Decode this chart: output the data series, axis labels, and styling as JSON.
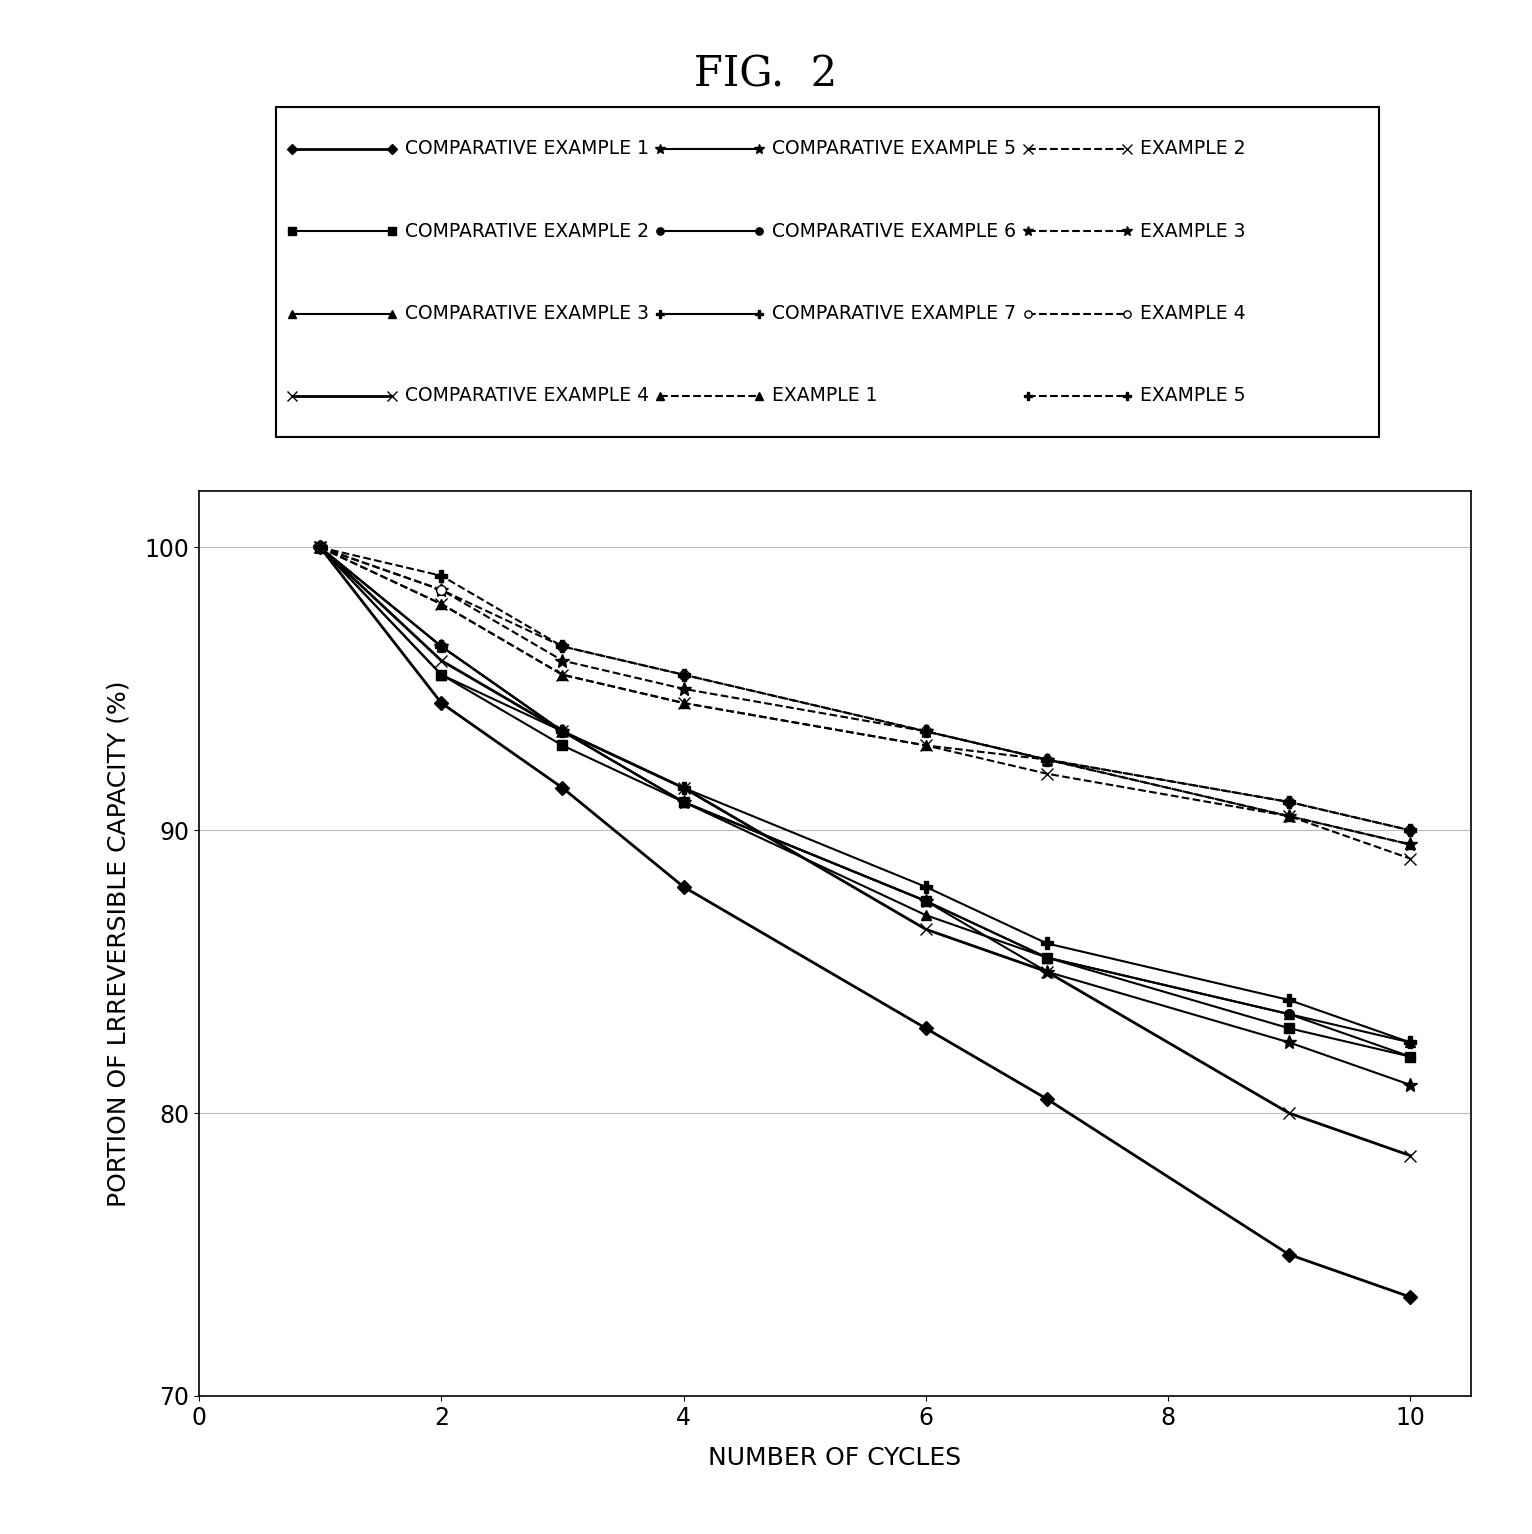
{
  "title": "FIG.  2",
  "xlabel": "NUMBER OF CYCLES",
  "ylabel": "PORTION OF LRREVERSIBLE CAPACITY (%)",
  "xlim": [
    0,
    10.5
  ],
  "ylim": [
    70,
    102
  ],
  "yticks": [
    70,
    80,
    90,
    100
  ],
  "xticks": [
    0,
    2,
    4,
    6,
    8,
    10
  ],
  "x_values": [
    1,
    2,
    3,
    4,
    6,
    7,
    9,
    10
  ],
  "series": [
    {
      "label": "COMPARATIVE EXAMPLE 1",
      "y": [
        100,
        94.5,
        91.5,
        88.0,
        83.0,
        80.5,
        75.0,
        73.5
      ],
      "linestyle": "-",
      "marker": "D",
      "markersize": 7,
      "linewidth": 2.0
    },
    {
      "label": "COMPARATIVE EXAMPLE 2",
      "y": [
        100,
        95.5,
        93.0,
        91.0,
        87.5,
        85.5,
        83.0,
        82.0
      ],
      "linestyle": "-",
      "marker": "s",
      "markersize": 7,
      "linewidth": 1.5
    },
    {
      "label": "COMPARATIVE EXAMPLE 3",
      "y": [
        100,
        95.5,
        93.5,
        91.0,
        87.0,
        85.5,
        83.5,
        82.5
      ],
      "linestyle": "-",
      "marker": "^",
      "markersize": 7,
      "linewidth": 1.5
    },
    {
      "label": "COMPARATIVE EXAMPLE 4",
      "y": [
        100,
        96.0,
        93.5,
        91.5,
        86.5,
        85.0,
        80.0,
        78.5
      ],
      "linestyle": "-",
      "marker": "x",
      "markersize": 9,
      "linewidth": 2.0
    },
    {
      "label": "COMPARATIVE EXAMPLE 5",
      "y": [
        100,
        96.5,
        93.5,
        91.0,
        87.5,
        85.0,
        82.5,
        81.0
      ],
      "linestyle": "-",
      "marker": "*",
      "markersize": 10,
      "linewidth": 1.5
    },
    {
      "label": "COMPARATIVE EXAMPLE 6",
      "y": [
        100,
        96.5,
        93.5,
        91.0,
        87.5,
        85.5,
        83.5,
        82.0
      ],
      "linestyle": "-",
      "marker": "o",
      "markersize": 7,
      "linewidth": 1.5
    },
    {
      "label": "COMPARATIVE EXAMPLE 7",
      "y": [
        100,
        96.5,
        93.5,
        91.5,
        88.0,
        86.0,
        84.0,
        82.5
      ],
      "linestyle": "-",
      "marker": "P",
      "markersize": 8,
      "linewidth": 1.5
    },
    {
      "label": "EXAMPLE 1",
      "y": [
        100,
        98.0,
        95.5,
        94.5,
        93.0,
        92.5,
        90.5,
        89.5
      ],
      "linestyle": "--",
      "marker": "^",
      "markersize": 7,
      "linewidth": 1.5
    },
    {
      "label": "EXAMPLE 2",
      "y": [
        100,
        98.0,
        95.5,
        94.5,
        93.0,
        92.0,
        90.5,
        89.0
      ],
      "linestyle": "--",
      "marker": "x",
      "markersize": 9,
      "linewidth": 1.5
    },
    {
      "label": "EXAMPLE 3",
      "y": [
        100,
        98.5,
        96.0,
        95.0,
        93.5,
        92.5,
        90.5,
        89.5
      ],
      "linestyle": "--",
      "marker": "*",
      "markersize": 10,
      "linewidth": 1.5
    },
    {
      "label": "EXAMPLE 4",
      "y": [
        100,
        98.5,
        96.5,
        95.5,
        93.5,
        92.5,
        91.0,
        90.0
      ],
      "linestyle": "--",
      "marker": "o",
      "markersize": 7,
      "linewidth": 1.5
    },
    {
      "label": "EXAMPLE 5",
      "y": [
        100,
        99.0,
        96.5,
        95.5,
        93.5,
        92.5,
        91.0,
        90.0
      ],
      "linestyle": "--",
      "marker": "P",
      "markersize": 8,
      "linewidth": 1.5
    }
  ],
  "legend_order": [
    0,
    4,
    8,
    1,
    5,
    9,
    2,
    6,
    10,
    3,
    7,
    11
  ],
  "legend_labels_ordered": [
    "COMPARATIVE EXAMPLE 1",
    "COMPARATIVE EXAMPLE 5",
    "EXAMPLE 2",
    "COMPARATIVE EXAMPLE 2",
    "COMPARATIVE EXAMPLE 6",
    "EXAMPLE 3",
    "COMPARATIVE EXAMPLE 3",
    "COMPARATIVE EXAMPLE 7",
    "EXAMPLE 4",
    "COMPARATIVE EXAMPLE 4",
    "EXAMPLE 1",
    "EXAMPLE 5"
  ],
  "grid_color": "#bbbbbb",
  "grid_linewidth": 0.8,
  "title_fontsize": 30,
  "axis_label_fontsize": 18,
  "tick_fontsize": 17,
  "legend_fontsize": 13.5
}
